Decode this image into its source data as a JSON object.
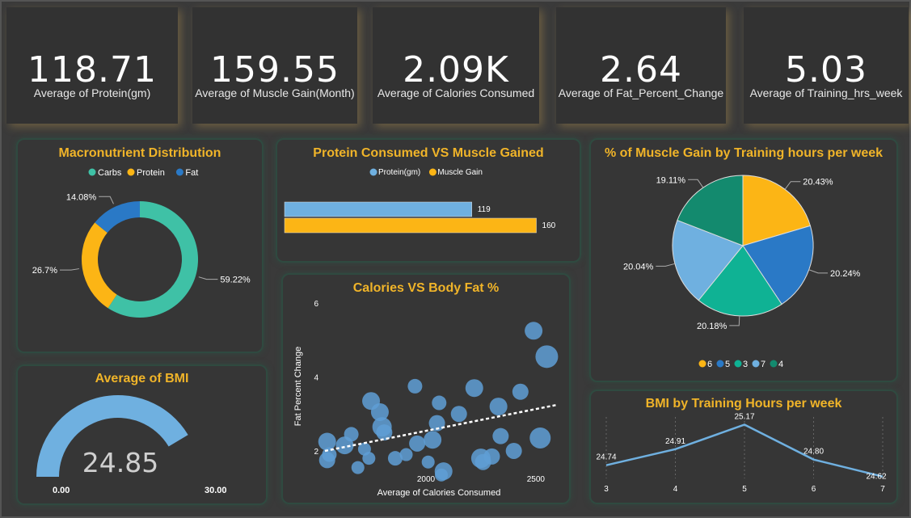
{
  "kpis": [
    {
      "value": "118.71",
      "label": "Average of Protein(gm)"
    },
    {
      "value": "159.55",
      "label": "Average of Muscle Gain(Month)"
    },
    {
      "value": "2.09K",
      "label": "Average of Calories Consumed"
    },
    {
      "value": "2.64",
      "label": "Average of Fat_Percent_Change"
    },
    {
      "value": "5.03",
      "label": "Average of Training_hrs_week"
    }
  ],
  "colors": {
    "title": "#f0b429",
    "carbs": "#3fc1a6",
    "protein": "#fcb515",
    "fat": "#2a79c6",
    "lightblue": "#6fb0e0",
    "teal_dark": "#138a6e"
  },
  "chart_data": [
    {
      "id": "macro",
      "type": "pie",
      "title": "Macronutrient Distribution",
      "legend": [
        "Carbs",
        "Protein",
        "Fat"
      ],
      "slices": [
        {
          "name": "Carbs",
          "value": 59.22,
          "label": "59.22%"
        },
        {
          "name": "Protein",
          "value": 26.7,
          "label": "26.7%"
        },
        {
          "name": "Fat",
          "value": 14.08,
          "label": "14.08%"
        }
      ]
    },
    {
      "id": "protein_muscle",
      "type": "bar",
      "title": "Protein Consumed VS Muscle Gained",
      "legend": [
        "Protein(gm)",
        "Muscle Gain"
      ],
      "series": [
        {
          "name": "Protein(gm)",
          "values": [
            119
          ]
        },
        {
          "name": "Muscle Gain",
          "values": [
            160
          ]
        }
      ],
      "xlim": [
        0,
        170
      ]
    },
    {
      "id": "training_pie",
      "type": "pie",
      "title": "% of Muscle Gain by Training hours per week",
      "legend": [
        "6",
        "5",
        "3",
        "7",
        "4"
      ],
      "slices": [
        {
          "name": "6",
          "value": 20.43,
          "label": "20.43%"
        },
        {
          "name": "5",
          "value": 20.24,
          "label": "20.24%"
        },
        {
          "name": "3",
          "value": 20.18,
          "label": "20.18%"
        },
        {
          "name": "7",
          "value": 20.04,
          "label": "20.04%"
        },
        {
          "name": "4",
          "value": 19.11,
          "label": "19.11%"
        }
      ]
    },
    {
      "id": "calories_fat",
      "type": "scatter",
      "title": "Calories VS Body Fat %",
      "xlabel": "Average of Calories Consumed",
      "ylabel": "Fat Percent Change",
      "xticks": [
        "2000",
        "2500"
      ],
      "yticks": [
        "2",
        "4",
        "6"
      ],
      "xlim": [
        1540,
        2600
      ],
      "ylim": [
        1.3,
        6
      ],
      "trend": {
        "x": [
          1540,
          2600
        ],
        "y": [
          2.0,
          3.25
        ]
      },
      "points": [
        {
          "x": 1550,
          "y": 2.25,
          "s": 11
        },
        {
          "x": 1560,
          "y": 1.9,
          "s": 9
        },
        {
          "x": 1550,
          "y": 1.75,
          "s": 10
        },
        {
          "x": 1630,
          "y": 2.15,
          "s": 11
        },
        {
          "x": 1660,
          "y": 2.45,
          "s": 9
        },
        {
          "x": 1690,
          "y": 1.55,
          "s": 8
        },
        {
          "x": 1720,
          "y": 2.05,
          "s": 8
        },
        {
          "x": 1740,
          "y": 1.8,
          "s": 8
        },
        {
          "x": 1750,
          "y": 3.35,
          "s": 11
        },
        {
          "x": 1790,
          "y": 3.05,
          "s": 11
        },
        {
          "x": 1800,
          "y": 2.65,
          "s": 12
        },
        {
          "x": 1810,
          "y": 2.5,
          "s": 10
        },
        {
          "x": 1860,
          "y": 1.8,
          "s": 9
        },
        {
          "x": 1910,
          "y": 1.9,
          "s": 8
        },
        {
          "x": 1950,
          "y": 3.75,
          "s": 9
        },
        {
          "x": 1960,
          "y": 2.2,
          "s": 10
        },
        {
          "x": 2010,
          "y": 1.7,
          "s": 8
        },
        {
          "x": 2030,
          "y": 2.3,
          "s": 11
        },
        {
          "x": 2050,
          "y": 2.75,
          "s": 10
        },
        {
          "x": 2060,
          "y": 3.3,
          "s": 9
        },
        {
          "x": 2070,
          "y": 1.35,
          "s": 8
        },
        {
          "x": 2080,
          "y": 1.45,
          "s": 11
        },
        {
          "x": 2150,
          "y": 3.0,
          "s": 10
        },
        {
          "x": 2220,
          "y": 3.7,
          "s": 11
        },
        {
          "x": 2250,
          "y": 1.8,
          "s": 12
        },
        {
          "x": 2260,
          "y": 1.7,
          "s": 10
        },
        {
          "x": 2300,
          "y": 1.85,
          "s": 10
        },
        {
          "x": 2330,
          "y": 3.2,
          "s": 11
        },
        {
          "x": 2340,
          "y": 2.4,
          "s": 10
        },
        {
          "x": 2400,
          "y": 2.0,
          "s": 10
        },
        {
          "x": 2430,
          "y": 3.6,
          "s": 10
        },
        {
          "x": 2490,
          "y": 5.25,
          "s": 11
        },
        {
          "x": 2520,
          "y": 2.35,
          "s": 13
        },
        {
          "x": 2550,
          "y": 4.55,
          "s": 14
        }
      ]
    },
    {
      "id": "bmi_gauge",
      "type": "gauge",
      "title": "Average of BMI",
      "value": 24.85,
      "value_label": "24.85",
      "min_label": "0.00",
      "max_label": "30.00",
      "range": [
        0,
        30
      ]
    },
    {
      "id": "bmi_training",
      "type": "line",
      "title": "BMI by Training Hours per week",
      "categories": [
        "3",
        "4",
        "5",
        "6",
        "7"
      ],
      "values": [
        24.74,
        24.91,
        25.17,
        24.8,
        24.62
      ],
      "labels": [
        "24.74",
        "24.91",
        "25.17",
        "24.80",
        "24.62"
      ],
      "ylim": [
        24.6,
        25.2
      ]
    }
  ]
}
